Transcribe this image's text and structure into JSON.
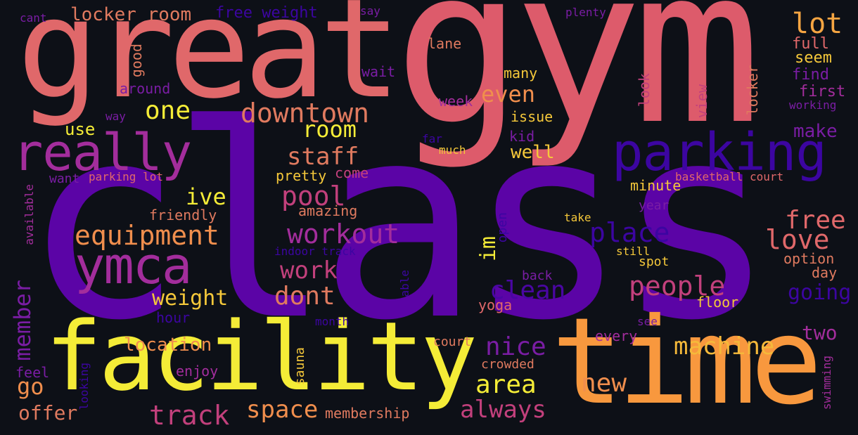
{
  "background_color": "#0d1017",
  "words": [
    {
      "text": "class",
      "color": "#5b04a6"
    },
    {
      "text": "gym",
      "color": "#dd5b6b"
    },
    {
      "text": "great",
      "color": "#e0686a"
    },
    {
      "text": "facility",
      "color": "#f4ec37"
    },
    {
      "text": "time",
      "color": "#f8983e"
    },
    {
      "text": "really",
      "color": "#a32d9c"
    },
    {
      "text": "parking",
      "color": "#3c05a1"
    },
    {
      "text": "ymca",
      "color": "#a32d9c"
    },
    {
      "text": "downtown",
      "color": "#e07a5f"
    },
    {
      "text": "equipment",
      "color": "#f08e4d"
    },
    {
      "text": "workout",
      "color": "#a32d9c"
    },
    {
      "text": "staff",
      "color": "#e07a5f"
    },
    {
      "text": "room",
      "color": "#f4ec37"
    },
    {
      "text": "one",
      "color": "#f4ec37"
    },
    {
      "text": "even",
      "color": "#f08e4d"
    },
    {
      "text": "lot",
      "color": "#f5a542"
    },
    {
      "text": "pool",
      "color": "#c2407c"
    },
    {
      "text": "place",
      "color": "#3c05a1"
    },
    {
      "text": "free",
      "color": "#e0686a"
    },
    {
      "text": "love",
      "color": "#e0686a"
    },
    {
      "text": "people",
      "color": "#c2407c"
    },
    {
      "text": "clean",
      "color": "#4a06a3"
    },
    {
      "text": "work",
      "color": "#c2407c"
    },
    {
      "text": "dont",
      "color": "#e07a5f"
    },
    {
      "text": "machine",
      "color": "#f5b93a"
    },
    {
      "text": "nice",
      "color": "#7a1da4"
    },
    {
      "text": "area",
      "color": "#f4ec37"
    },
    {
      "text": "new",
      "color": "#f08e4d"
    },
    {
      "text": "always",
      "color": "#c2407c"
    },
    {
      "text": "track",
      "color": "#c2407c"
    },
    {
      "text": "space",
      "color": "#f08e4d"
    },
    {
      "text": "member",
      "color": "#7a1da4"
    },
    {
      "text": "go",
      "color": "#f08e4d"
    },
    {
      "text": "offer",
      "color": "#e07a5f"
    },
    {
      "text": "ive",
      "color": "#f4ec37"
    },
    {
      "text": "weight",
      "color": "#f5c83a"
    },
    {
      "text": "location",
      "color": "#f08e4d"
    },
    {
      "text": "im",
      "color": "#f4ec37"
    },
    {
      "text": "locker room",
      "color": "#e07a5f"
    },
    {
      "text": "free weight",
      "color": "#3c05a1"
    },
    {
      "text": "make",
      "color": "#7a1da4"
    },
    {
      "text": "two",
      "color": "#a32d9c"
    },
    {
      "text": "going",
      "color": "#3c05a1"
    },
    {
      "text": "use",
      "color": "#f4ec37"
    },
    {
      "text": "well",
      "color": "#f5c83a"
    },
    {
      "text": "pretty",
      "color": "#f5c83a"
    },
    {
      "text": "friendly",
      "color": "#e07a5f"
    },
    {
      "text": "amazing",
      "color": "#e07a5f"
    },
    {
      "text": "minute",
      "color": "#f5c83a"
    },
    {
      "text": "find",
      "color": "#7a1da4"
    },
    {
      "text": "first",
      "color": "#a32d9c"
    },
    {
      "text": "full",
      "color": "#e0686a"
    },
    {
      "text": "seem",
      "color": "#f5c83a"
    },
    {
      "text": "lane",
      "color": "#e07a5f"
    },
    {
      "text": "wait",
      "color": "#7a1da4"
    },
    {
      "text": "many",
      "color": "#f5c83a"
    },
    {
      "text": "week",
      "color": "#a32d9c"
    },
    {
      "text": "issue",
      "color": "#f5c83a"
    },
    {
      "text": "kid",
      "color": "#7a1da4"
    },
    {
      "text": "around",
      "color": "#7a1da4"
    },
    {
      "text": "good",
      "color": "#e07a5f"
    },
    {
      "text": "cant",
      "color": "#7a1da4"
    },
    {
      "text": "say",
      "color": "#7a1da4"
    },
    {
      "text": "plenty",
      "color": "#7a1da4"
    },
    {
      "text": "way",
      "color": "#7a1da4"
    },
    {
      "text": "want",
      "color": "#7a1da4"
    },
    {
      "text": "parking lot",
      "color": "#e0686a"
    },
    {
      "text": "come",
      "color": "#c2407c"
    },
    {
      "text": "much",
      "color": "#f5c83a"
    },
    {
      "text": "far",
      "color": "#3c05a1"
    },
    {
      "text": "look",
      "color": "#c2407c"
    },
    {
      "text": "view",
      "color": "#c2407c"
    },
    {
      "text": "locker",
      "color": "#e07a5f"
    },
    {
      "text": "working",
      "color": "#7a1da4"
    },
    {
      "text": "basketball court",
      "color": "#e0686a"
    },
    {
      "text": "year",
      "color": "#7a1da4"
    },
    {
      "text": "take",
      "color": "#f5c83a"
    },
    {
      "text": "open",
      "color": "#3c05a1"
    },
    {
      "text": "still",
      "color": "#f5c83a"
    },
    {
      "text": "spot",
      "color": "#f5c83a"
    },
    {
      "text": "option",
      "color": "#e07a5f"
    },
    {
      "text": "day",
      "color": "#e07a5f"
    },
    {
      "text": "back",
      "color": "#7a1da4"
    },
    {
      "text": "able",
      "color": "#3c05a1"
    },
    {
      "text": "yoga",
      "color": "#e0686a"
    },
    {
      "text": "floor",
      "color": "#f5c83a"
    },
    {
      "text": "indoor track",
      "color": "#3c05a1"
    },
    {
      "text": "available",
      "color": "#a32d9c"
    },
    {
      "text": "hour",
      "color": "#3c05a1"
    },
    {
      "text": "month",
      "color": "#3c05a1"
    },
    {
      "text": "see",
      "color": "#7a1da4"
    },
    {
      "text": "every",
      "color": "#a32d9c"
    },
    {
      "text": "court",
      "color": "#e07a5f"
    },
    {
      "text": "crowded",
      "color": "#e07a5f"
    },
    {
      "text": "enjoy",
      "color": "#a32d9c"
    },
    {
      "text": "feel",
      "color": "#7a1da4"
    },
    {
      "text": "looking",
      "color": "#3c05a1"
    },
    {
      "text": "sauna",
      "color": "#f5c83a"
    },
    {
      "text": "membership",
      "color": "#e07a5f"
    },
    {
      "text": "swimming",
      "color": "#a32d9c"
    }
  ]
}
